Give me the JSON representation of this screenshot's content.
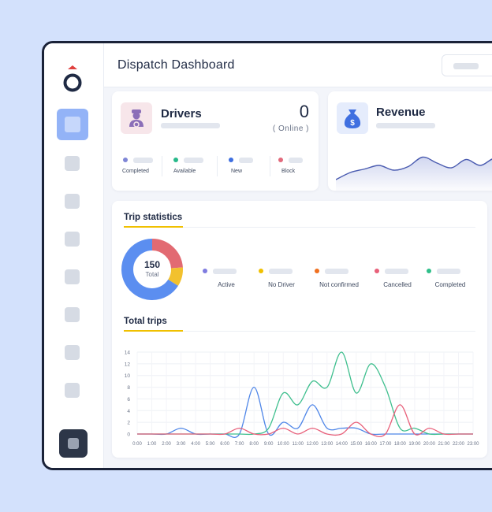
{
  "header": {
    "title": "Dispatch Dashboard"
  },
  "drivers": {
    "title": "Drivers",
    "count": "0",
    "online_label": "( Online )",
    "stats": [
      {
        "label": "Completed",
        "color": "#7f86d6"
      },
      {
        "label": "Available",
        "color": "#27b98a"
      },
      {
        "label": "New",
        "color": "#3f6fe0"
      },
      {
        "label": "Block",
        "color": "#e26a7c"
      }
    ]
  },
  "revenue": {
    "title": "Revenue"
  },
  "trip_statistics": {
    "title": "Trip statistics",
    "total_value": "150",
    "total_label": "Total",
    "legend": [
      {
        "label": "Active",
        "color": "#7f7ce0"
      },
      {
        "label": "No Driver",
        "color": "#f0c000"
      },
      {
        "label": "Not confirmed",
        "color": "#f07020"
      },
      {
        "label": "Cancelled",
        "color": "#e8607a"
      },
      {
        "label": "Completed",
        "color": "#2fbf8a"
      }
    ]
  },
  "total_trips": {
    "title": "Total trips"
  },
  "chart_data": [
    {
      "type": "pie",
      "title": "Trip statistics",
      "center_value": 150,
      "center_label": "Total",
      "slices": [
        {
          "color": "#e26a72",
          "value": 0.24
        },
        {
          "color": "#f2c12e",
          "value": 0.1
        },
        {
          "color": "#5b8ef0",
          "value": 0.66
        }
      ]
    },
    {
      "type": "line",
      "title": "Total trips",
      "x": [
        "0:00",
        "1:00",
        "2:00",
        "3:00",
        "4:00",
        "5:00",
        "6:00",
        "7:00",
        "8:00",
        "9:00",
        "10:00",
        "11:00",
        "12:00",
        "13:00",
        "14:00",
        "15:00",
        "16:00",
        "17:00",
        "18:00",
        "19:00",
        "20:00",
        "21:00",
        "22:00",
        "23:00"
      ],
      "ylim": [
        0,
        14
      ],
      "yticks": [
        0,
        2,
        4,
        6,
        8,
        10,
        12,
        14
      ],
      "series": [
        {
          "color": "#4f86e8",
          "values": [
            0,
            0,
            0,
            1,
            0,
            0,
            0,
            0,
            8,
            0,
            2,
            1,
            5,
            1,
            1,
            1,
            0,
            0,
            0,
            0,
            0,
            0,
            0,
            0
          ]
        },
        {
          "color": "#3fbf8e",
          "values": [
            0,
            0,
            0,
            0,
            0,
            0,
            0,
            0,
            0,
            1,
            7,
            5,
            9,
            8,
            14,
            7,
            12,
            8,
            1,
            1,
            0,
            0,
            0,
            0
          ]
        },
        {
          "color": "#e8607a",
          "values": [
            0,
            0,
            0,
            0,
            0,
            0,
            0,
            1,
            0,
            0,
            1,
            0,
            1,
            0,
            0,
            2,
            0,
            0,
            5,
            0,
            1,
            0,
            0,
            0
          ]
        }
      ]
    },
    {
      "type": "area",
      "title": "Revenue",
      "values": [
        0,
        0.3,
        0.45,
        0.6,
        0.4,
        0.55,
        0.95,
        0.7,
        0.5,
        0.85,
        0.6,
        0.9,
        0.6
      ],
      "color": "#5a6fc8"
    }
  ]
}
